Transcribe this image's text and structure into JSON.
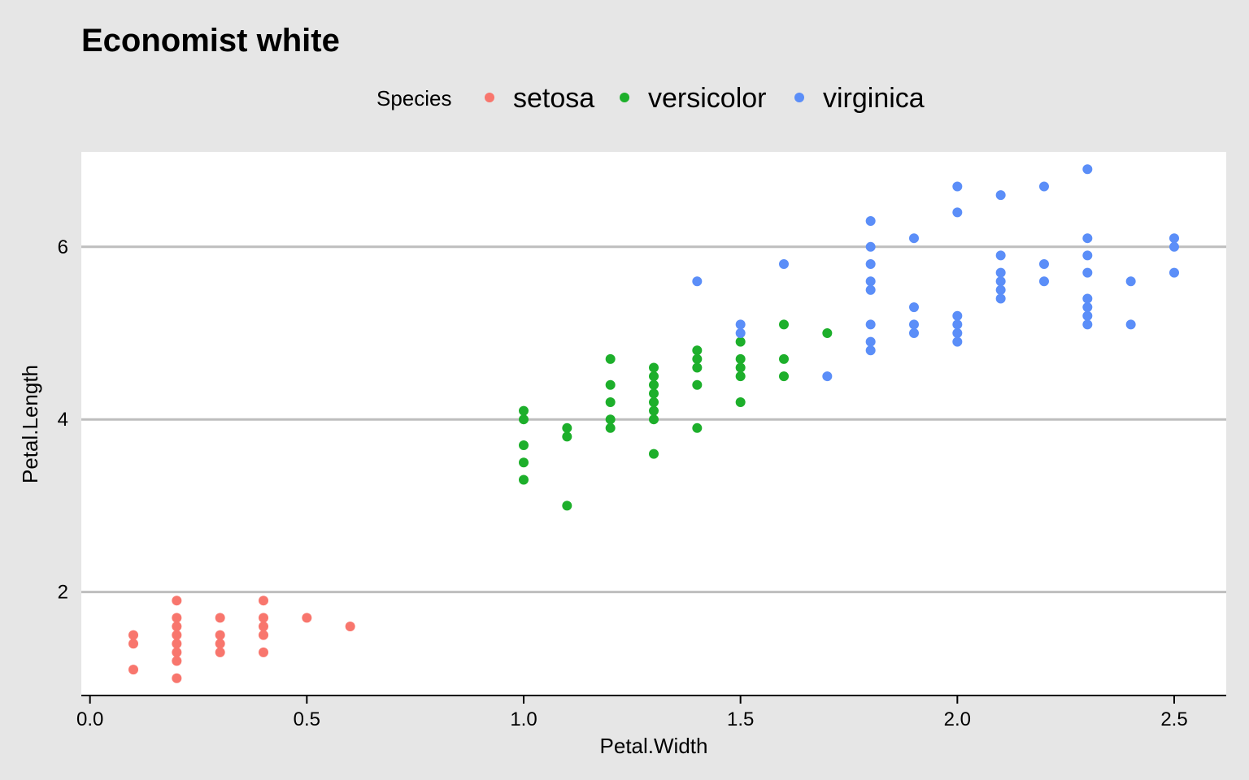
{
  "chart_data": {
    "type": "scatter",
    "title": "Economist white",
    "xlabel": "Petal.Width",
    "ylabel": "Petal.Length",
    "xlim": [
      -0.02,
      2.62
    ],
    "ylim": [
      0.8,
      7.1
    ],
    "x_ticks": [
      0.0,
      0.5,
      1.0,
      1.5,
      2.0,
      2.5
    ],
    "x_tick_labels": [
      "0.0",
      "0.5",
      "1.0",
      "1.5",
      "2.0",
      "2.5"
    ],
    "y_ticks": [
      2,
      4,
      6
    ],
    "y_tick_labels": [
      "2",
      "4",
      "6"
    ],
    "grid": "horizontal major lines",
    "legend": {
      "title": "Species",
      "position": "top",
      "entries": [
        "setosa",
        "versicolor",
        "virginica"
      ]
    },
    "background_color": "#e6e6e6",
    "panel_color": "#ffffff",
    "gridline_color": "#bebebe",
    "series": [
      {
        "name": "setosa",
        "color": "#f8766d",
        "points": [
          [
            0.1,
            1.5
          ],
          [
            0.1,
            1.4
          ],
          [
            0.1,
            1.1
          ],
          [
            0.2,
            1.9
          ],
          [
            0.2,
            1.7
          ],
          [
            0.2,
            1.6
          ],
          [
            0.2,
            1.5
          ],
          [
            0.2,
            1.4
          ],
          [
            0.2,
            1.3
          ],
          [
            0.2,
            1.2
          ],
          [
            0.2,
            1.0
          ],
          [
            0.3,
            1.7
          ],
          [
            0.3,
            1.5
          ],
          [
            0.3,
            1.4
          ],
          [
            0.3,
            1.3
          ],
          [
            0.4,
            1.9
          ],
          [
            0.4,
            1.7
          ],
          [
            0.4,
            1.6
          ],
          [
            0.4,
            1.5
          ],
          [
            0.4,
            1.3
          ],
          [
            0.5,
            1.7
          ],
          [
            0.6,
            1.6
          ]
        ]
      },
      {
        "name": "versicolor",
        "color": "#1daf2b",
        "points": [
          [
            1.0,
            4.1
          ],
          [
            1.0,
            4.0
          ],
          [
            1.0,
            3.7
          ],
          [
            1.0,
            3.5
          ],
          [
            1.0,
            3.3
          ],
          [
            1.1,
            3.9
          ],
          [
            1.1,
            3.8
          ],
          [
            1.1,
            3.0
          ],
          [
            1.2,
            4.7
          ],
          [
            1.2,
            4.4
          ],
          [
            1.2,
            4.2
          ],
          [
            1.2,
            4.0
          ],
          [
            1.2,
            3.9
          ],
          [
            1.3,
            4.6
          ],
          [
            1.3,
            4.5
          ],
          [
            1.3,
            4.4
          ],
          [
            1.3,
            4.3
          ],
          [
            1.3,
            4.2
          ],
          [
            1.3,
            4.1
          ],
          [
            1.3,
            4.0
          ],
          [
            1.3,
            3.6
          ],
          [
            1.4,
            4.8
          ],
          [
            1.4,
            4.7
          ],
          [
            1.4,
            4.6
          ],
          [
            1.4,
            4.4
          ],
          [
            1.4,
            3.9
          ],
          [
            1.5,
            4.9
          ],
          [
            1.5,
            4.7
          ],
          [
            1.5,
            4.6
          ],
          [
            1.5,
            4.5
          ],
          [
            1.5,
            4.2
          ],
          [
            1.6,
            5.1
          ],
          [
            1.6,
            4.7
          ],
          [
            1.6,
            4.5
          ],
          [
            1.7,
            5.0
          ]
        ]
      },
      {
        "name": "virginica",
        "color": "#5b8ef8",
        "points": [
          [
            1.4,
            5.6
          ],
          [
            1.5,
            5.1
          ],
          [
            1.5,
            5.0
          ],
          [
            1.6,
            5.8
          ],
          [
            1.7,
            4.5
          ],
          [
            1.8,
            6.3
          ],
          [
            1.8,
            6.0
          ],
          [
            1.8,
            5.8
          ],
          [
            1.8,
            5.6
          ],
          [
            1.8,
            5.5
          ],
          [
            1.8,
            5.1
          ],
          [
            1.8,
            4.9
          ],
          [
            1.8,
            4.8
          ],
          [
            1.9,
            6.1
          ],
          [
            1.9,
            5.3
          ],
          [
            1.9,
            5.1
          ],
          [
            1.9,
            5.0
          ],
          [
            2.0,
            6.7
          ],
          [
            2.0,
            6.4
          ],
          [
            2.0,
            5.2
          ],
          [
            2.0,
            5.1
          ],
          [
            2.0,
            5.0
          ],
          [
            2.0,
            4.9
          ],
          [
            2.1,
            6.6
          ],
          [
            2.1,
            5.9
          ],
          [
            2.1,
            5.7
          ],
          [
            2.1,
            5.6
          ],
          [
            2.1,
            5.5
          ],
          [
            2.1,
            5.4
          ],
          [
            2.2,
            6.7
          ],
          [
            2.2,
            5.8
          ],
          [
            2.2,
            5.6
          ],
          [
            2.3,
            6.9
          ],
          [
            2.3,
            6.1
          ],
          [
            2.3,
            5.9
          ],
          [
            2.3,
            5.7
          ],
          [
            2.3,
            5.4
          ],
          [
            2.3,
            5.3
          ],
          [
            2.3,
            5.2
          ],
          [
            2.3,
            5.1
          ],
          [
            2.4,
            5.6
          ],
          [
            2.4,
            5.1
          ],
          [
            2.5,
            6.1
          ],
          [
            2.5,
            6.0
          ],
          [
            2.5,
            5.7
          ]
        ]
      }
    ]
  }
}
